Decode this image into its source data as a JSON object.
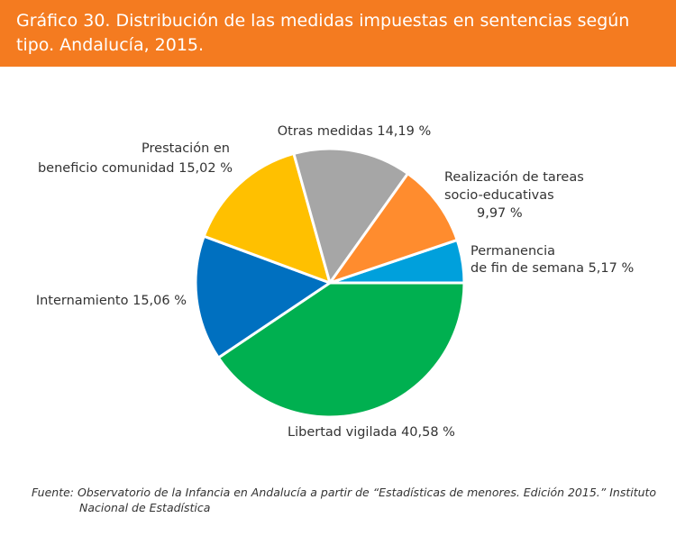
{
  "header": {
    "title": "Gráfico 30. Distribución de las medidas impuestas en sentencias según tipo. Andalucía, 2015."
  },
  "chart_data": {
    "type": "pie",
    "title": "",
    "slices": [
      {
        "name": "Permanencia de fin de semana",
        "value": 5.17,
        "color": "#00a0dc",
        "label_lines": [
          "Permanencia",
          "de fin de semana 5,17 %"
        ]
      },
      {
        "name": "Libertad vigilada",
        "value": 40.58,
        "color": "#00b050",
        "label_lines": [
          "Libertad vigilada 40,58 %"
        ]
      },
      {
        "name": "Internamiento",
        "value": 15.06,
        "color": "#0070c0",
        "label_lines": [
          "Internamiento 15,06 %"
        ]
      },
      {
        "name": "Prestación en beneficio comunidad",
        "value": 15.02,
        "color": "#ffc000",
        "label_lines": [
          "Prestación en",
          "beneficio comunidad 15,02 %"
        ]
      },
      {
        "name": "Otras medidas",
        "value": 14.19,
        "color": "#a6a6a6",
        "label_lines": [
          "Otras medidas 14,19 %"
        ]
      },
      {
        "name": "Realización de tareas socio-educativas",
        "value": 9.97,
        "color": "#ff8c2e",
        "label_lines": [
          "Realización de tareas",
          "socio-educativas",
          "9,97 %"
        ]
      }
    ]
  },
  "source": {
    "line1": "Fuente: Observatorio de la Infancia en Andalucía a partir de “Estadísticas de menores. Edición 2015.” Instituto",
    "line2": "Nacional de Estadística"
  }
}
